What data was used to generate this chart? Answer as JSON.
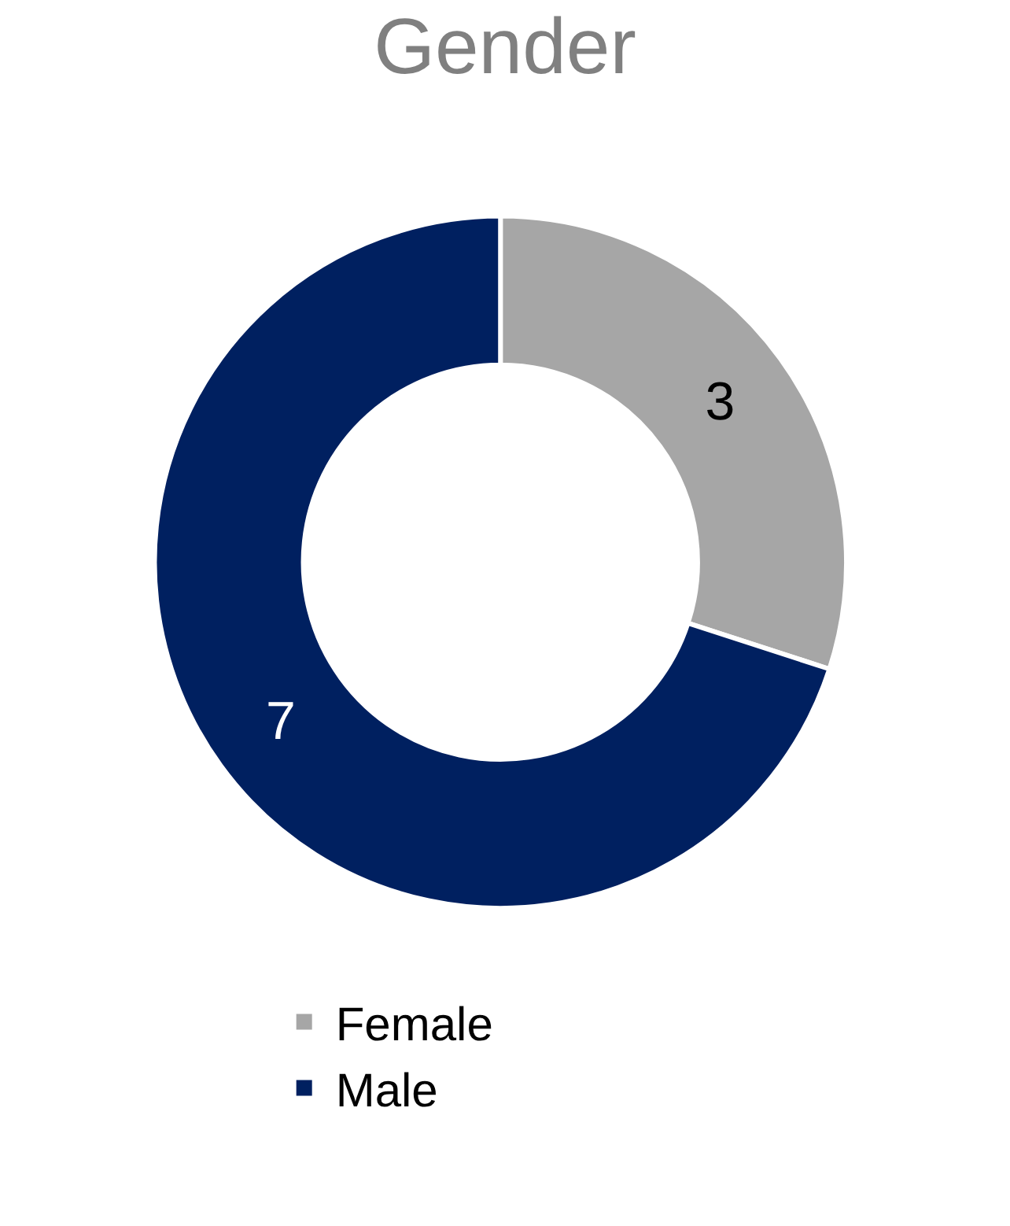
{
  "chart_data": {
    "type": "donut",
    "title": "Gender",
    "categories": [
      "Female",
      "Male"
    ],
    "values": [
      3,
      7
    ],
    "colors": [
      "#a6a6a6",
      "#002060"
    ],
    "data_labels": true,
    "legend": "bottom"
  }
}
